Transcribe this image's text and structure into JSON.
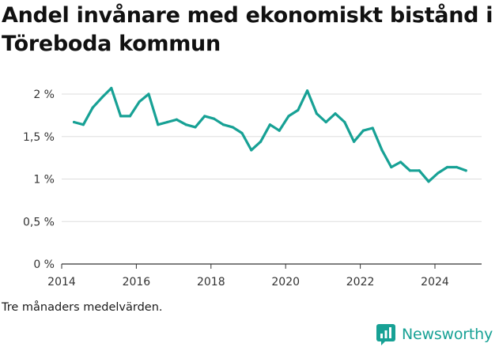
{
  "header": {
    "title": "Andel invånare med ekonomiskt bistånd i Töreboda kommun"
  },
  "footer": {
    "note": "Tre månaders medelvärden.",
    "brand": "Newsworthy"
  },
  "colors": {
    "line": "#17a195",
    "grid": "#dddddd",
    "text": "#333333",
    "brand": "#17a195"
  },
  "chart_data": {
    "type": "line",
    "title": "Andel invånare med ekonomiskt bistånd i Töreboda kommun",
    "xlabel": "",
    "ylabel": "",
    "xlim": [
      2014,
      2025.25
    ],
    "ylim": [
      0,
      2
    ],
    "x_ticks": [
      2014,
      2016,
      2018,
      2020,
      2022,
      2024
    ],
    "x_tick_labels": [
      "2014",
      "2016",
      "2018",
      "2020",
      "2022",
      "2024"
    ],
    "y_ticks": [
      0,
      0.5,
      1,
      1.5,
      2
    ],
    "y_tick_labels": [
      "0 %",
      "0,5 %",
      "1 %",
      "1,5 %",
      "2 %"
    ],
    "grid": true,
    "series": [
      {
        "x": [
          2014.33,
          2014.58,
          2014.83,
          2015.08,
          2015.33,
          2015.58,
          2015.83,
          2016.08,
          2016.33,
          2016.58,
          2016.83,
          2017.08,
          2017.33,
          2017.58,
          2017.83,
          2018.08,
          2018.33,
          2018.58,
          2018.83,
          2019.08,
          2019.33,
          2019.58,
          2019.83,
          2020.08,
          2020.33,
          2020.58,
          2020.83,
          2021.08,
          2021.33,
          2021.58,
          2021.83,
          2022.08,
          2022.33,
          2022.58,
          2022.83,
          2023.08,
          2023.33,
          2023.58,
          2023.83,
          2024.08,
          2024.33,
          2024.58,
          2024.83
        ],
        "values": [
          1.67,
          1.64,
          1.84,
          1.96,
          2.07,
          1.74,
          1.74,
          1.91,
          2.0,
          1.64,
          1.67,
          1.7,
          1.64,
          1.61,
          1.74,
          1.71,
          1.64,
          1.61,
          1.54,
          1.34,
          1.44,
          1.64,
          1.57,
          1.74,
          1.81,
          2.04,
          1.77,
          1.67,
          1.77,
          1.67,
          1.44,
          1.57,
          1.6,
          1.34,
          1.14,
          1.2,
          1.1,
          1.1,
          0.97,
          1.07,
          1.14,
          1.14,
          1.1
        ]
      }
    ]
  }
}
